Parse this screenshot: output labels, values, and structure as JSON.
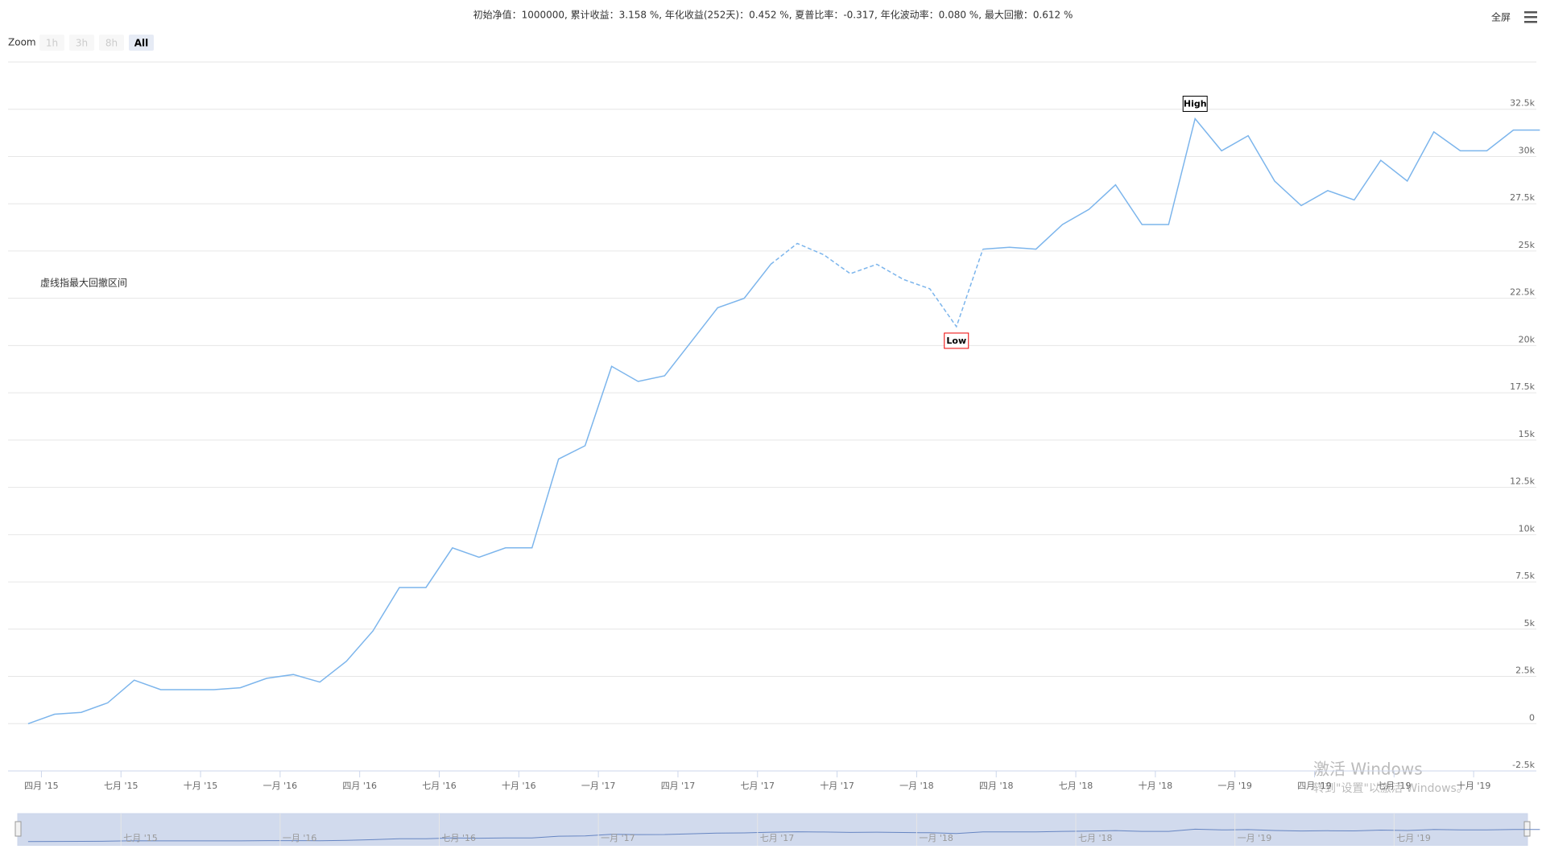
{
  "chart_data": {
    "type": "line",
    "title": "初始净值：1000000, 累计收益：3.158 %, 年化收益(252天)：0.452 %, 夏普比率：-0.317, 年化波动率：0.080 %, 最大回撤：0.612 %",
    "note": "虚线指最大回撤区间",
    "color": "#7cb5ec",
    "x": [
      "2015-03",
      "2015-04",
      "2015-05",
      "2015-06",
      "2015-07",
      "2015-08",
      "2015-09",
      "2015-10",
      "2015-11",
      "2015-12",
      "2016-01",
      "2016-02",
      "2016-03",
      "2016-04",
      "2016-05",
      "2016-06",
      "2016-07",
      "2016-08",
      "2016-09",
      "2016-10",
      "2016-11",
      "2016-12",
      "2017-01",
      "2017-02",
      "2017-03",
      "2017-04",
      "2017-05",
      "2017-06",
      "2017-07",
      "2017-08",
      "2017-09",
      "2017-10",
      "2017-11",
      "2017-12",
      "2018-01",
      "2018-02",
      "2018-03",
      "2018-04",
      "2018-05",
      "2018-06",
      "2018-07",
      "2018-08",
      "2018-09",
      "2018-10",
      "2018-11",
      "2018-12",
      "2019-01",
      "2019-02",
      "2019-03",
      "2019-04",
      "2019-05",
      "2019-06",
      "2019-07",
      "2019-08",
      "2019-09",
      "2019-10",
      "2019-11",
      "2019-12"
    ],
    "values": [
      0,
      500,
      600,
      1100,
      2300,
      1800,
      1800,
      1800,
      1900,
      2400,
      2600,
      2200,
      3300,
      4900,
      7200,
      7200,
      9300,
      8800,
      9300,
      9300,
      14000,
      14700,
      18900,
      18100,
      18400,
      20200,
      22000,
      22500,
      24300,
      25400,
      24800,
      23800,
      24300,
      23500,
      23000,
      21000,
      25100,
      25200,
      25100,
      26400,
      27200,
      28500,
      26400,
      26400,
      32000,
      30300,
      31100,
      28700,
      27400,
      28200,
      27700,
      29800,
      28700,
      31300,
      30300,
      30300,
      31400,
      31400
    ],
    "dashed_range": [
      "2017-08",
      "2018-03"
    ],
    "annotations": [
      {
        "x": "2018-11",
        "label": "High"
      },
      {
        "x": "2018-02",
        "label": "Low"
      }
    ],
    "ylim": [
      -2500,
      35000
    ],
    "yticks": [
      {
        "value": -2500,
        "label": "-2.5k"
      },
      0,
      {
        "value": 2500,
        "label": "2.5k"
      },
      {
        "value": 5000,
        "label": "5k"
      },
      {
        "value": 7500,
        "label": "7.5k"
      },
      {
        "value": 10000,
        "label": "10k"
      },
      {
        "value": 12500,
        "label": "12.5k"
      },
      {
        "value": 15000,
        "label": "15k"
      },
      {
        "value": 17500,
        "label": "17.5k"
      },
      {
        "value": 20000,
        "label": "20k"
      },
      {
        "value": 22500,
        "label": "22.5k"
      },
      {
        "value": 25000,
        "label": "25k"
      },
      {
        "value": 27500,
        "label": "27.5k"
      },
      {
        "value": 30000,
        "label": "30k"
      },
      {
        "value": 32500,
        "label": "32.5k"
      }
    ],
    "xticks": [
      {
        "value": "2015-04",
        "label": "四月 '15"
      },
      {
        "value": "2015-07",
        "label": "七月 '15"
      },
      {
        "value": "2015-10",
        "label": "十月 '15"
      },
      {
        "value": "2016-01",
        "label": "一月 '16"
      },
      {
        "value": "2016-04",
        "label": "四月 '16"
      },
      {
        "value": "2016-07",
        "label": "七月 '16"
      },
      {
        "value": "2016-10",
        "label": "十月 '16"
      },
      {
        "value": "2017-01",
        "label": "一月 '17"
      },
      {
        "value": "2017-04",
        "label": "四月 '17"
      },
      {
        "value": "2017-07",
        "label": "七月 '17"
      },
      {
        "value": "2017-10",
        "label": "十月 '17"
      },
      {
        "value": "2018-01",
        "label": "一月 '18"
      },
      {
        "value": "2018-04",
        "label": "四月 '18"
      },
      {
        "value": "2018-07",
        "label": "七月 '18"
      },
      {
        "value": "2018-10",
        "label": "十月 '18"
      },
      {
        "value": "2019-01",
        "label": "一月 '19"
      },
      {
        "value": "2019-04",
        "label": "四月 '19"
      },
      {
        "value": "2019-07",
        "label": "七月 '19"
      },
      {
        "value": "2019-10",
        "label": "十月 '19"
      }
    ],
    "navigator_xticks": [
      {
        "value": "2015-07",
        "label": "七月 '15"
      },
      {
        "value": "2016-01",
        "label": "一月 '16"
      },
      {
        "value": "2016-07",
        "label": "七月 '16"
      },
      {
        "value": "2017-01",
        "label": "一月 '17"
      },
      {
        "value": "2017-07",
        "label": "七月 '17"
      },
      {
        "value": "2018-01",
        "label": "一月 '18"
      },
      {
        "value": "2018-07",
        "label": "七月 '18"
      },
      {
        "value": "2019-01",
        "label": "一月 '19"
      },
      {
        "value": "2019-07",
        "label": "七月 '19"
      }
    ],
    "grid": true
  },
  "toolbar": {
    "zoom_label": "Zoom",
    "buttons": [
      "1h",
      "3h",
      "8h",
      "All"
    ],
    "selected": 3,
    "fullscreen": "全屏"
  },
  "watermark": {
    "title": "激活 Windows",
    "text": "转到\"设置\"以激活 Windows。"
  }
}
